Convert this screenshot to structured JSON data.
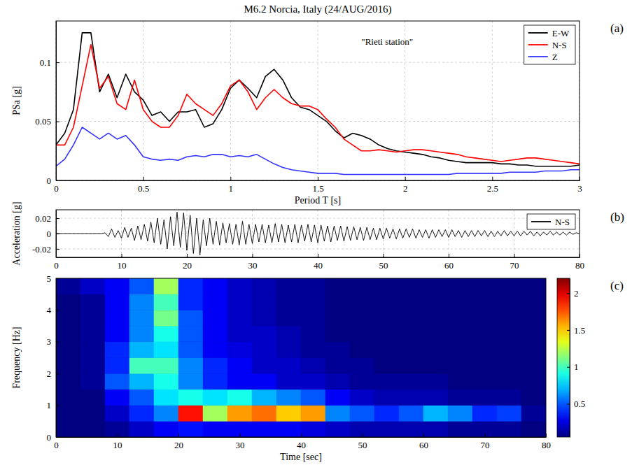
{
  "title": "M6.2 Norcia, Italy (24/AUG/2016)",
  "chart_data": [
    {
      "type": "line",
      "panel_label": "(a)",
      "x_label": "Period T [s]",
      "y_label": "PSa [g]",
      "xlim": [
        0,
        3
      ],
      "ylim": [
        0,
        0.135
      ],
      "xticks": [
        0,
        0.5,
        1,
        1.5,
        2,
        2.5,
        3
      ],
      "yticks": [
        0,
        0.05,
        0.1
      ],
      "grid": true,
      "legend": "top-right",
      "annotations": [
        {
          "text": "\"Rieti station\"",
          "x": 1.75,
          "y": 0.115
        }
      ],
      "x": [
        0,
        0.05,
        0.1,
        0.15,
        0.2,
        0.25,
        0.3,
        0.35,
        0.4,
        0.45,
        0.5,
        0.55,
        0.6,
        0.65,
        0.7,
        0.75,
        0.8,
        0.85,
        0.9,
        0.95,
        1,
        1.05,
        1.1,
        1.15,
        1.2,
        1.25,
        1.3,
        1.35,
        1.4,
        1.45,
        1.5,
        1.55,
        1.6,
        1.65,
        1.7,
        1.75,
        1.8,
        1.85,
        1.9,
        1.95,
        2,
        2.05,
        2.1,
        2.15,
        2.2,
        2.25,
        2.3,
        2.35,
        2.4,
        2.45,
        2.5,
        2.55,
        2.6,
        2.65,
        2.7,
        2.75,
        2.8,
        2.85,
        2.9,
        2.95,
        3
      ],
      "series": [
        {
          "name": "E-W",
          "color": "#000000",
          "values": [
            0.03,
            0.04,
            0.06,
            0.125,
            0.125,
            0.075,
            0.09,
            0.07,
            0.09,
            0.075,
            0.068,
            0.055,
            0.058,
            0.05,
            0.058,
            0.058,
            0.06,
            0.045,
            0.048,
            0.06,
            0.078,
            0.085,
            0.078,
            0.07,
            0.088,
            0.094,
            0.085,
            0.07,
            0.062,
            0.06,
            0.055,
            0.05,
            0.042,
            0.036,
            0.04,
            0.038,
            0.035,
            0.03,
            0.027,
            0.025,
            0.024,
            0.023,
            0.022,
            0.02,
            0.019,
            0.017,
            0.016,
            0.015,
            0.015,
            0.015,
            0.015,
            0.014,
            0.014,
            0.013,
            0.013,
            0.012,
            0.012,
            0.012,
            0.012,
            0.012,
            0.013
          ]
        },
        {
          "name": "N-S",
          "color": "#ff0000",
          "values": [
            0.03,
            0.03,
            0.045,
            0.08,
            0.115,
            0.078,
            0.088,
            0.065,
            0.06,
            0.085,
            0.06,
            0.05,
            0.045,
            0.045,
            0.055,
            0.073,
            0.065,
            0.06,
            0.055,
            0.065,
            0.08,
            0.085,
            0.075,
            0.06,
            0.07,
            0.077,
            0.07,
            0.065,
            0.063,
            0.063,
            0.06,
            0.052,
            0.045,
            0.035,
            0.03,
            0.025,
            0.025,
            0.026,
            0.025,
            0.024,
            0.025,
            0.026,
            0.026,
            0.025,
            0.024,
            0.023,
            0.022,
            0.02,
            0.019,
            0.018,
            0.017,
            0.016,
            0.017,
            0.018,
            0.019,
            0.019,
            0.018,
            0.017,
            0.016,
            0.015,
            0.014
          ]
        },
        {
          "name": "Z",
          "color": "#3333ff",
          "values": [
            0.012,
            0.018,
            0.03,
            0.045,
            0.04,
            0.035,
            0.04,
            0.035,
            0.038,
            0.03,
            0.02,
            0.018,
            0.017,
            0.018,
            0.017,
            0.02,
            0.021,
            0.02,
            0.022,
            0.022,
            0.02,
            0.021,
            0.02,
            0.022,
            0.018,
            0.014,
            0.011,
            0.009,
            0.008,
            0.007,
            0.006,
            0.006,
            0.006,
            0.005,
            0.005,
            0.005,
            0.005,
            0.005,
            0.005,
            0.005,
            0.005,
            0.005,
            0.005,
            0.005,
            0.005,
            0.005,
            0.006,
            0.006,
            0.006,
            0.006,
            0.006,
            0.006,
            0.007,
            0.007,
            0.007,
            0.007,
            0.008,
            0.008,
            0.008,
            0.009,
            0.009
          ]
        }
      ]
    },
    {
      "type": "line",
      "panel_label": "(b)",
      "y_label": "Acceleration [g]",
      "xlim": [
        0,
        80
      ],
      "ylim": [
        -0.031,
        0.031
      ],
      "xticks": [
        0,
        10,
        20,
        30,
        40,
        50,
        60,
        70,
        80
      ],
      "yticks": [
        -0.02,
        0,
        0.02
      ],
      "grid": true,
      "legend": "top-right",
      "x": [
        0,
        0.5,
        1,
        1.5,
        2,
        2.5,
        3,
        3.5,
        4,
        4.5,
        5,
        5.5,
        6,
        6.5,
        7,
        7.5,
        8,
        8.5,
        9,
        9.5,
        10,
        10.5,
        11,
        11.5,
        12,
        12.5,
        13,
        13.5,
        14,
        14.5,
        15,
        15.5,
        16,
        16.5,
        17,
        17.5,
        18,
        18.5,
        19,
        19.5,
        20,
        20.5,
        21,
        21.5,
        22,
        22.5,
        23,
        23.5,
        24,
        24.5,
        25,
        25.5,
        26,
        26.5,
        27,
        27.5,
        28,
        28.5,
        29,
        29.5,
        30,
        30.5,
        31,
        31.5,
        32,
        32.5,
        33,
        33.5,
        34,
        34.5,
        35,
        35.5,
        36,
        36.5,
        37,
        37.5,
        38,
        38.5,
        39,
        39.5,
        40,
        40.5,
        41,
        41.5,
        42,
        42.5,
        43,
        43.5,
        44,
        44.5,
        45,
        45.5,
        46,
        46.5,
        47,
        47.5,
        48,
        48.5,
        49,
        49.5,
        50,
        50.5,
        51,
        51.5,
        52,
        52.5,
        53,
        53.5,
        54,
        54.5,
        55,
        55.5,
        56,
        56.5,
        57,
        57.5,
        58,
        58.5,
        59,
        59.5,
        60,
        60.5,
        61,
        61.5,
        62,
        62.5,
        63,
        63.5,
        64,
        64.5,
        65,
        65.5,
        66,
        66.5,
        67,
        67.5,
        68,
        68.5,
        69,
        69.5,
        70,
        70.5,
        71,
        71.5,
        72,
        72.5,
        73,
        73.5,
        74,
        74.5,
        75,
        75.5,
        76,
        76.5,
        77,
        77.5,
        78,
        78.5,
        79,
        79.5,
        80
      ],
      "series": [
        {
          "name": "N-S",
          "color": "#000000",
          "values": [
            0,
            0,
            0,
            0,
            0,
            0,
            0,
            0,
            0,
            0,
            0,
            0,
            0,
            0,
            0,
            0.001,
            -0.004,
            0.006,
            -0.005,
            0.004,
            -0.006,
            0.008,
            -0.005,
            0.007,
            -0.009,
            0.01,
            -0.008,
            0.012,
            -0.01,
            0.015,
            -0.012,
            0.02,
            -0.014,
            0.018,
            -0.02,
            0.022,
            -0.016,
            0.028,
            -0.018,
            0.027,
            -0.022,
            0.024,
            -0.026,
            0.02,
            -0.028,
            0.018,
            -0.016,
            0.02,
            -0.014,
            0.016,
            -0.015,
            0.014,
            -0.012,
            0.013,
            -0.014,
            0.012,
            -0.015,
            0.016,
            -0.014,
            0.012,
            -0.013,
            0.012,
            -0.011,
            0.012,
            -0.012,
            0.011,
            -0.012,
            0.013,
            -0.011,
            0.012,
            -0.012,
            0.011,
            -0.011,
            0.012,
            -0.012,
            0.011,
            -0.01,
            0.012,
            -0.011,
            0.011,
            -0.012,
            0.011,
            -0.01,
            0.01,
            -0.011,
            0.01,
            -0.009,
            0.01,
            -0.01,
            0.009,
            -0.009,
            0.009,
            -0.008,
            0.008,
            -0.009,
            0.008,
            -0.008,
            0.007,
            -0.008,
            0.007,
            -0.007,
            0.007,
            -0.006,
            0.006,
            -0.007,
            0.006,
            -0.006,
            0.006,
            -0.005,
            0.006,
            -0.006,
            0.005,
            -0.005,
            0.005,
            -0.006,
            0.005,
            -0.005,
            0.005,
            -0.004,
            0.005,
            -0.005,
            0.005,
            -0.004,
            0.004,
            -0.005,
            0.004,
            -0.004,
            0.004,
            -0.004,
            0.004,
            -0.003,
            0.004,
            -0.004,
            0.003,
            -0.004,
            0.003,
            -0.003,
            0.004,
            -0.003,
            0.003,
            -0.003,
            0.003,
            -0.003,
            0.003,
            -0.002,
            0.003,
            -0.003,
            0.002,
            -0.003,
            0.002,
            -0.002,
            0.003,
            -0.002,
            0.002,
            -0.002,
            0.002,
            -0.002,
            0.002,
            -0.001,
            0.001,
            0
          ]
        }
      ]
    },
    {
      "type": "heatmap",
      "panel_label": "(c)",
      "x_label": "Time [sec]",
      "y_label": "Frequency [Hz]",
      "xlim": [
        0,
        80
      ],
      "ylim": [
        0,
        5
      ],
      "xticks": [
        0,
        10,
        20,
        30,
        40,
        50,
        60,
        70,
        80
      ],
      "yticks": [
        0,
        1,
        2,
        3,
        4,
        5
      ],
      "grid": false,
      "x_bins": [
        0,
        4,
        8,
        12,
        16,
        20,
        24,
        28,
        32,
        36,
        40,
        44,
        48,
        52,
        56,
        60,
        64,
        68,
        72,
        76,
        80
      ],
      "y_bins": [
        0,
        0.5,
        1,
        1.5,
        2,
        2.5,
        3,
        3.5,
        4,
        4.5,
        5
      ],
      "values": [
        [
          0.05,
          0.05,
          0.1,
          0.2,
          0.3,
          0.35,
          0.3,
          0.3,
          0.3,
          0.3,
          0.25,
          0.2,
          0.15,
          0.15,
          0.15,
          0.15,
          0.1,
          0.1,
          0.1,
          0.05
        ],
        [
          0.05,
          0.05,
          0.2,
          0.4,
          0.6,
          1.9,
          1.2,
          1.6,
          1.7,
          1.5,
          1.6,
          0.6,
          0.5,
          0.4,
          0.5,
          0.7,
          0.6,
          0.4,
          0.45,
          0.1
        ],
        [
          0.05,
          0.05,
          0.3,
          0.5,
          0.8,
          0.9,
          0.8,
          0.9,
          0.7,
          0.6,
          0.5,
          0.3,
          0.2,
          0.15,
          0.15,
          0.15,
          0.1,
          0.1,
          0.1,
          0.05
        ],
        [
          0.05,
          0.1,
          0.5,
          0.7,
          0.9,
          0.6,
          0.4,
          0.3,
          0.3,
          0.2,
          0.2,
          0.15,
          0.1,
          0.1,
          0.1,
          0.1,
          0.05,
          0.05,
          0.05,
          0.05
        ],
        [
          0.05,
          0.1,
          0.4,
          1.0,
          1.0,
          0.6,
          0.4,
          0.3,
          0.2,
          0.2,
          0.15,
          0.1,
          0.1,
          0.05,
          0.05,
          0.05,
          0.05,
          0.05,
          0.05,
          0.05
        ],
        [
          0.05,
          0.1,
          0.4,
          0.7,
          0.8,
          0.5,
          0.3,
          0.25,
          0.2,
          0.15,
          0.1,
          0.1,
          0.05,
          0.05,
          0.05,
          0.05,
          0.05,
          0.05,
          0.05,
          0.05
        ],
        [
          0.05,
          0.1,
          0.3,
          0.6,
          0.9,
          0.5,
          0.3,
          0.2,
          0.2,
          0.15,
          0.1,
          0.05,
          0.05,
          0.05,
          0.05,
          0.05,
          0.05,
          0.05,
          0.05,
          0.05
        ],
        [
          0.05,
          0.1,
          0.3,
          0.6,
          1.1,
          0.5,
          0.3,
          0.2,
          0.15,
          0.1,
          0.1,
          0.05,
          0.05,
          0.05,
          0.05,
          0.05,
          0.05,
          0.05,
          0.05,
          0.05
        ],
        [
          0.05,
          0.1,
          0.3,
          0.6,
          1.0,
          0.4,
          0.3,
          0.2,
          0.15,
          0.1,
          0.1,
          0.05,
          0.05,
          0.05,
          0.05,
          0.05,
          0.05,
          0.05,
          0.05,
          0.05
        ],
        [
          0.1,
          0.2,
          0.3,
          0.5,
          1.2,
          0.4,
          0.3,
          0.2,
          0.15,
          0.1,
          0.1,
          0.05,
          0.05,
          0.05,
          0.05,
          0.05,
          0.05,
          0.05,
          0.05,
          0.05
        ]
      ],
      "colorbar": {
        "range": [
          0.05,
          2.2
        ],
        "ticks": [
          0.5,
          1,
          1.5,
          2
        ]
      }
    }
  ]
}
